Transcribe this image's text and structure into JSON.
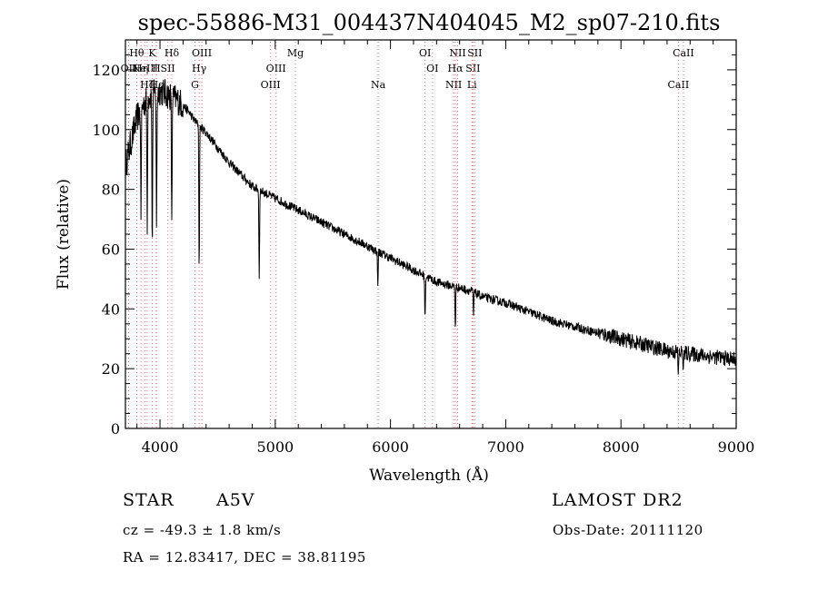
{
  "chart_data": {
    "type": "line",
    "title": "spec-55886-M31_004437N404045_M2_sp07-210.fits",
    "xlabel": "Wavelength (Å)",
    "ylabel": "Flux (relative)",
    "xlim": [
      3700,
      9000
    ],
    "ylim": [
      0,
      130
    ],
    "xticks": [
      4000,
      5000,
      6000,
      7000,
      8000,
      9000
    ],
    "yticks": [
      0,
      20,
      40,
      60,
      80,
      100,
      120
    ],
    "grid": false,
    "series": [
      {
        "color": "#000000",
        "x": [
          3700,
          3750,
          3800,
          3850,
          3900,
          3950,
          4000,
          4050,
          4100,
          4150,
          4200,
          4250,
          4300,
          4400,
          4500,
          4600,
          4700,
          4800,
          4900,
          5000,
          5100,
          5200,
          5300,
          5400,
          5500,
          5600,
          5700,
          5800,
          5900,
          6000,
          6100,
          6200,
          6300,
          6400,
          6500,
          6600,
          6700,
          6800,
          6900,
          7000,
          7200,
          7400,
          7600,
          7800,
          8000,
          8200,
          8400,
          8600,
          8800,
          9000
        ],
        "y": [
          88,
          96,
          104,
          108,
          111,
          112,
          113,
          112,
          111,
          110,
          108,
          106,
          103,
          99,
          94,
          89,
          85,
          81,
          79,
          77,
          75,
          73,
          71,
          69,
          67,
          65,
          63,
          61,
          59,
          57,
          55,
          53,
          51,
          49,
          48,
          47,
          46,
          44,
          43,
          42,
          39,
          36,
          34,
          32,
          30,
          28,
          26,
          25,
          24,
          23
        ]
      }
    ],
    "absorption_dips": [
      {
        "x": 3835,
        "depth": 35
      },
      {
        "x": 3889,
        "depth": 45
      },
      {
        "x": 3933,
        "depth": 55
      },
      {
        "x": 3970,
        "depth": 48
      },
      {
        "x": 4102,
        "depth": 45
      },
      {
        "x": 4340,
        "depth": 50
      },
      {
        "x": 4861,
        "depth": 30
      },
      {
        "x": 5890,
        "depth": 12
      },
      {
        "x": 6300,
        "depth": 15
      },
      {
        "x": 6563,
        "depth": 14
      },
      {
        "x": 6720,
        "depth": 8
      },
      {
        "x": 8498,
        "depth": 8
      },
      {
        "x": 8542,
        "depth": 6
      }
    ],
    "line_markers": [
      {
        "wl": 3727,
        "label": "OII",
        "row": 1
      },
      {
        "wl": 3798,
        "label": "Hθ",
        "row": 0
      },
      {
        "wl": 3835,
        "label": "Hη",
        "row": 1
      },
      {
        "wl": 3869,
        "label": "NeIII",
        "row": 1
      },
      {
        "wl": 3889,
        "label": "Hζ",
        "row": 2
      },
      {
        "wl": 3933,
        "label": "K",
        "row": 0
      },
      {
        "wl": 3968,
        "label": "H",
        "row": 1
      },
      {
        "wl": 3970,
        "label": "Hε",
        "row": 2
      },
      {
        "wl": 4068,
        "label": "SII",
        "row": 1
      },
      {
        "wl": 4102,
        "label": "Hδ",
        "row": 0
      },
      {
        "wl": 4304,
        "label": "G",
        "row": 2
      },
      {
        "wl": 4340,
        "label": "Hγ",
        "row": 1
      },
      {
        "wl": 4363,
        "label": "OIII",
        "row": 0
      },
      {
        "wl": 4959,
        "label": "OIII",
        "row": 2
      },
      {
        "wl": 5007,
        "label": "OIII",
        "row": 1
      },
      {
        "wl": 5175,
        "label": "Mg",
        "row": 0
      },
      {
        "wl": 5893,
        "label": "Na",
        "row": 2
      },
      {
        "wl": 6300,
        "label": "OI",
        "row": 0
      },
      {
        "wl": 6364,
        "label": "OI",
        "row": 1
      },
      {
        "wl": 6548,
        "label": "NII",
        "row": 2
      },
      {
        "wl": 6563,
        "label": "Hα",
        "row": 1
      },
      {
        "wl": 6583,
        "label": "NII",
        "row": 0
      },
      {
        "wl": 6707,
        "label": "Li",
        "row": 2
      },
      {
        "wl": 6716,
        "label": "SII",
        "row": 1
      },
      {
        "wl": 6731,
        "label": "SII",
        "row": 0
      },
      {
        "wl": 8498,
        "label": "CaII",
        "row": 2
      },
      {
        "wl": 8542,
        "label": "CaII",
        "row": 0
      }
    ]
  },
  "info": {
    "class": "STAR",
    "subclass": "A5V",
    "survey": "LAMOST DR2",
    "cz": "cz = -49.3 ± 1.8 km/s",
    "obs_date": "Obs-Date: 20111120",
    "coords": "RA =  12.83417, DEC =  38.81195"
  }
}
